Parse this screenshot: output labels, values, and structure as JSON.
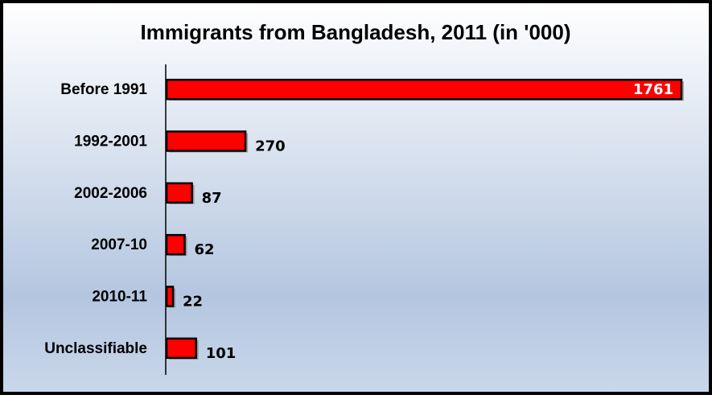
{
  "chart_data": {
    "type": "bar",
    "title": "Immigrants from Bangladesh, 2011 (in '000)",
    "categories": [
      "Before 1991",
      "1992-2001",
      "2002-2006",
      "2007-10",
      "2010-11",
      "Unclassifiable"
    ],
    "values": [
      1761,
      270,
      87,
      62,
      22,
      101
    ],
    "color": "#ff0000"
  }
}
